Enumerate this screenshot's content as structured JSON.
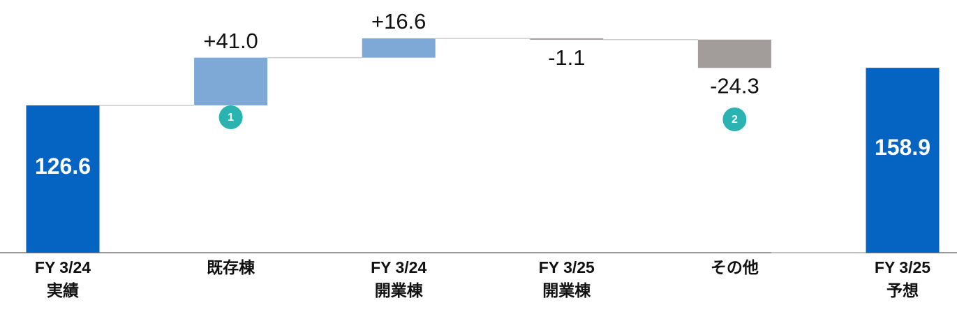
{
  "chart_data": {
    "type": "waterfall",
    "categories": [
      [
        "FY 3/24",
        "実績"
      ],
      [
        "既存棟"
      ],
      [
        "FY 3/24",
        "開業棟"
      ],
      [
        "FY 3/25",
        "開業棟"
      ],
      [
        "その他"
      ],
      [
        "FY 3/25",
        "予想"
      ]
    ],
    "measure": [
      "total",
      "relative",
      "relative",
      "relative",
      "relative",
      "total"
    ],
    "values": [
      126.6,
      41.0,
      16.6,
      -1.1,
      -24.3,
      158.9
    ],
    "value_labels": [
      "126.6",
      "+41.0",
      "+16.6",
      "-1.1",
      "-24.3",
      "158.9"
    ],
    "colors": {
      "total": "#0563c1",
      "increase": "#7ea9d6",
      "decrease": "#a29d9b"
    },
    "annotations": [
      "1",
      "2"
    ],
    "ylim": [
      0,
      200
    ]
  }
}
